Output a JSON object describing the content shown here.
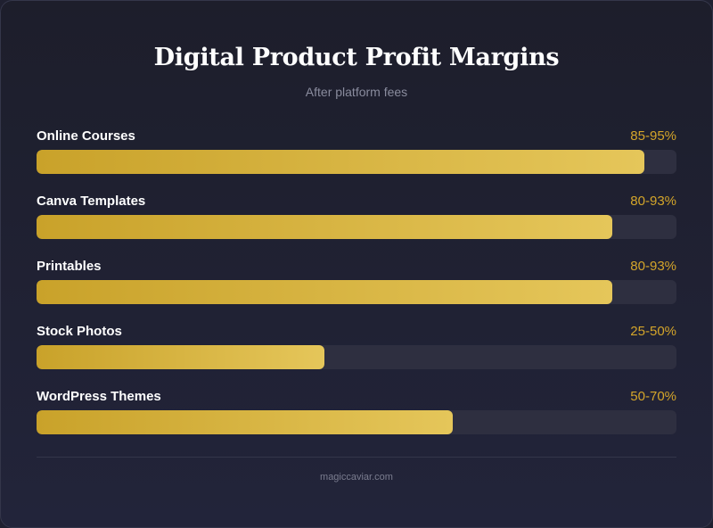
{
  "chart_data": {
    "type": "bar",
    "orientation": "horizontal",
    "title": "Digital Product Profit Margins",
    "subtitle": "After platform fees",
    "xlim": [
      0,
      100
    ],
    "unit": "%",
    "categories": [
      "Online Courses",
      "Canva Templates",
      "Printables",
      "Stock Photos",
      "WordPress Themes"
    ],
    "value_labels": [
      "85-95%",
      "80-93%",
      "80-93%",
      "25-50%",
      "50-70%"
    ],
    "ranges": [
      [
        85,
        95
      ],
      [
        80,
        93
      ],
      [
        80,
        93
      ],
      [
        25,
        50
      ],
      [
        50,
        70
      ]
    ],
    "values": [
      95,
      90,
      90,
      45,
      65
    ],
    "colors": {
      "bar_start": "#c9a22a",
      "bar_end": "#e5c65a",
      "track": "#2e2f40",
      "value_text": "#d4a52a"
    }
  },
  "footer": {
    "text": "magiccaviar.com"
  }
}
